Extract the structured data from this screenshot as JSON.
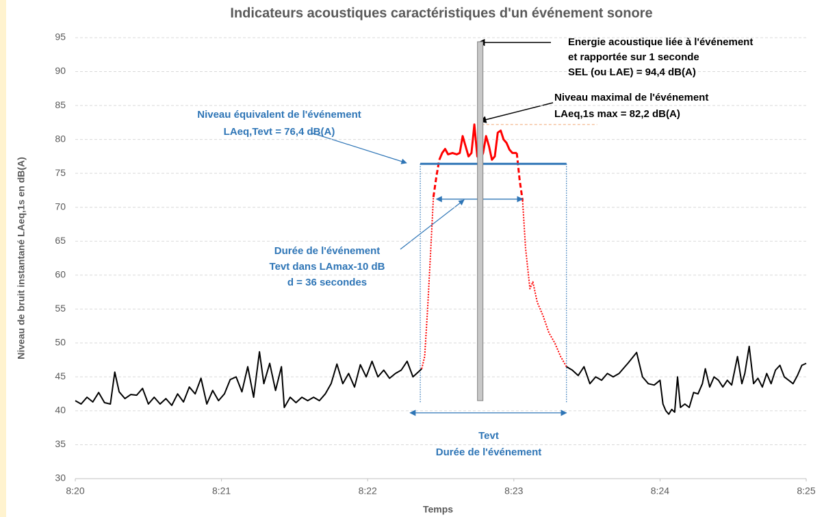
{
  "chart_data": {
    "type": "line",
    "title": "Indicateurs acoustiques caractéristiques d'un événement sonore",
    "x_label": "Temps",
    "y_label": "Niveau de bruit instantané LAeq,1s en dB(A)",
    "xlim": [
      500,
      505
    ],
    "xticks": [
      {
        "value": 500,
        "label": "8:20"
      },
      {
        "value": 501,
        "label": "8:21"
      },
      {
        "value": 502,
        "label": "8:22"
      },
      {
        "value": 503,
        "label": "8:23"
      },
      {
        "value": 504,
        "label": "8:24"
      },
      {
        "value": 505,
        "label": "8:25"
      }
    ],
    "ylim": [
      30,
      95
    ],
    "yticks": [
      30,
      35,
      40,
      45,
      50,
      55,
      60,
      65,
      70,
      75,
      80,
      85,
      90,
      95
    ],
    "grid": true,
    "series": [
      {
        "color": "#000000",
        "dash": "solid",
        "width": 2,
        "x": [
          500.0,
          500.04,
          500.08,
          500.12,
          500.16,
          500.2,
          500.24,
          500.27,
          500.3,
          500.34,
          500.38,
          500.42,
          500.46,
          500.5,
          500.54,
          500.58,
          500.62,
          500.66,
          500.7,
          500.74,
          500.78,
          500.82,
          500.86,
          500.9,
          500.94,
          500.98,
          501.02,
          501.06,
          501.1,
          501.14,
          501.18,
          501.22,
          501.26,
          501.29,
          501.33,
          501.37,
          501.41,
          501.43,
          501.47,
          501.51,
          501.55,
          501.59,
          501.63,
          501.67,
          501.71,
          501.75,
          501.79,
          501.83,
          501.87,
          501.91,
          501.95,
          501.99,
          502.03,
          502.07,
          502.11,
          502.15,
          502.19,
          502.23,
          502.27,
          502.31,
          502.35,
          502.37
        ],
        "values": [
          41.5,
          41.0,
          42.0,
          41.3,
          42.7,
          41.2,
          41.0,
          45.7,
          42.8,
          41.8,
          42.4,
          42.3,
          43.3,
          41.0,
          42.0,
          41.0,
          41.8,
          40.8,
          42.5,
          41.3,
          43.5,
          42.5,
          44.8,
          41.0,
          43.0,
          41.5,
          42.5,
          44.6,
          45.0,
          42.8,
          46.5,
          42.0,
          48.7,
          44.0,
          47.0,
          43.0,
          46.5,
          40.5,
          42.0,
          41.2,
          42.0,
          41.5,
          42.0,
          41.5,
          42.5,
          44.0,
          46.9,
          44.0,
          45.5,
          43.5,
          46.8,
          45.0,
          47.3,
          45.0,
          46.0,
          44.8,
          45.5,
          46.0,
          47.3,
          45.0,
          45.8,
          46.2
        ]
      },
      {
        "color": "#ff0000",
        "dash": "dotted",
        "width": 2,
        "x": [
          502.37,
          502.39,
          502.41,
          502.43,
          502.45,
          null,
          503.06,
          503.08,
          503.11,
          503.13,
          503.16,
          503.2,
          503.24,
          503.28,
          503.32,
          503.36
        ],
        "values": [
          46.2,
          48.0,
          55.0,
          63.0,
          71.5,
          null,
          71.0,
          64.0,
          58.0,
          59.0,
          56.0,
          54.0,
          51.5,
          50.0,
          48.0,
          46.5
        ]
      },
      {
        "color": "#ff0000",
        "dash": "dashed",
        "width": 3,
        "x": [
          502.45,
          502.47,
          502.49,
          null,
          503.02,
          503.04,
          503.06
        ],
        "values": [
          71.5,
          74.5,
          77.0,
          null,
          78.0,
          74.0,
          71.0
        ]
      },
      {
        "color": "#ff0000",
        "dash": "solid",
        "width": 3,
        "x": [
          502.49,
          502.51,
          502.53,
          502.55,
          502.58,
          502.61,
          502.63,
          502.65,
          502.67,
          502.69,
          502.71,
          502.73,
          502.75,
          502.77,
          502.79,
          502.81,
          502.83,
          502.85,
          502.87,
          502.89,
          502.91,
          502.93,
          502.95,
          502.97,
          502.99,
          503.02
        ],
        "values": [
          77.0,
          78.0,
          78.6,
          77.8,
          78.0,
          77.8,
          78.0,
          80.5,
          79.0,
          77.5,
          78.0,
          82.2,
          77.5,
          77.0,
          78.0,
          80.5,
          79.0,
          77.0,
          77.5,
          81.0,
          81.3,
          80.0,
          79.5,
          78.5,
          78.0,
          78.0
        ]
      },
      {
        "color": "#000000",
        "dash": "solid",
        "width": 2,
        "x": [
          503.36,
          503.4,
          503.44,
          503.48,
          503.52,
          503.56,
          503.6,
          503.64,
          503.68,
          503.72,
          503.76,
          503.78,
          503.84,
          503.88,
          503.92,
          503.96,
          504.0,
          504.02,
          504.04,
          504.06,
          504.08,
          504.1,
          504.12,
          504.14,
          504.17,
          504.2,
          504.23,
          504.26,
          504.29,
          504.31,
          504.34,
          504.37,
          504.4,
          504.43,
          504.46,
          504.49,
          504.53,
          504.56,
          504.58,
          504.61,
          504.64,
          504.67,
          504.7,
          504.73,
          504.76,
          504.79,
          504.82,
          504.85,
          504.88,
          504.91,
          504.94,
          504.97,
          505.0
        ],
        "values": [
          46.5,
          46.0,
          45.2,
          46.5,
          44.0,
          45.0,
          44.5,
          45.5,
          45.0,
          45.5,
          46.5,
          47.0,
          48.6,
          45.0,
          44.0,
          43.8,
          44.5,
          41.0,
          40.0,
          39.5,
          40.2,
          39.8,
          45.0,
          40.5,
          41.0,
          40.5,
          42.7,
          42.5,
          44.0,
          46.2,
          43.5,
          45.0,
          44.5,
          43.5,
          44.5,
          43.8,
          48.0,
          44.0,
          45.5,
          49.5,
          44.0,
          44.8,
          43.5,
          45.5,
          44.0,
          46.0,
          46.7,
          45.0,
          44.5,
          44.0,
          45.2,
          46.7,
          47.0
        ]
      }
    ],
    "sel_bar": {
      "x": 502.77,
      "bottom": 41.5,
      "value": 94.4
    },
    "leq_line": {
      "value": 76.4,
      "x": [
        502.36,
        503.36
      ],
      "bottom": 41.2
    },
    "lmax_line": {
      "value": 82.2,
      "x": [
        502.78,
        503.57
      ]
    },
    "duration_arrow": {
      "value": 71.2,
      "x": [
        502.47,
        503.06
      ]
    },
    "tevt_arrow": {
      "value": 39.7,
      "x": [
        502.29,
        503.36
      ]
    },
    "annotations": [
      [
        "Energie acoustique liée à l'événement",
        "et rapportée sur 1 seconde",
        "SEL (ou LAE) = 94,4 dB(A)"
      ],
      [
        "Niveau maximal de l'événement",
        "LAeq,1s max = 82,2 dB(A)"
      ],
      [
        "Niveau équivalent de l'événement",
        "LAeq,Tevt = 76,4 dB(A)"
      ],
      [
        "Durée de l'événement",
        "Tevt  dans LAmax-10 dB",
        "d = 36 secondes"
      ],
      [
        "Tevt",
        "Durée de l'événement"
      ]
    ]
  }
}
